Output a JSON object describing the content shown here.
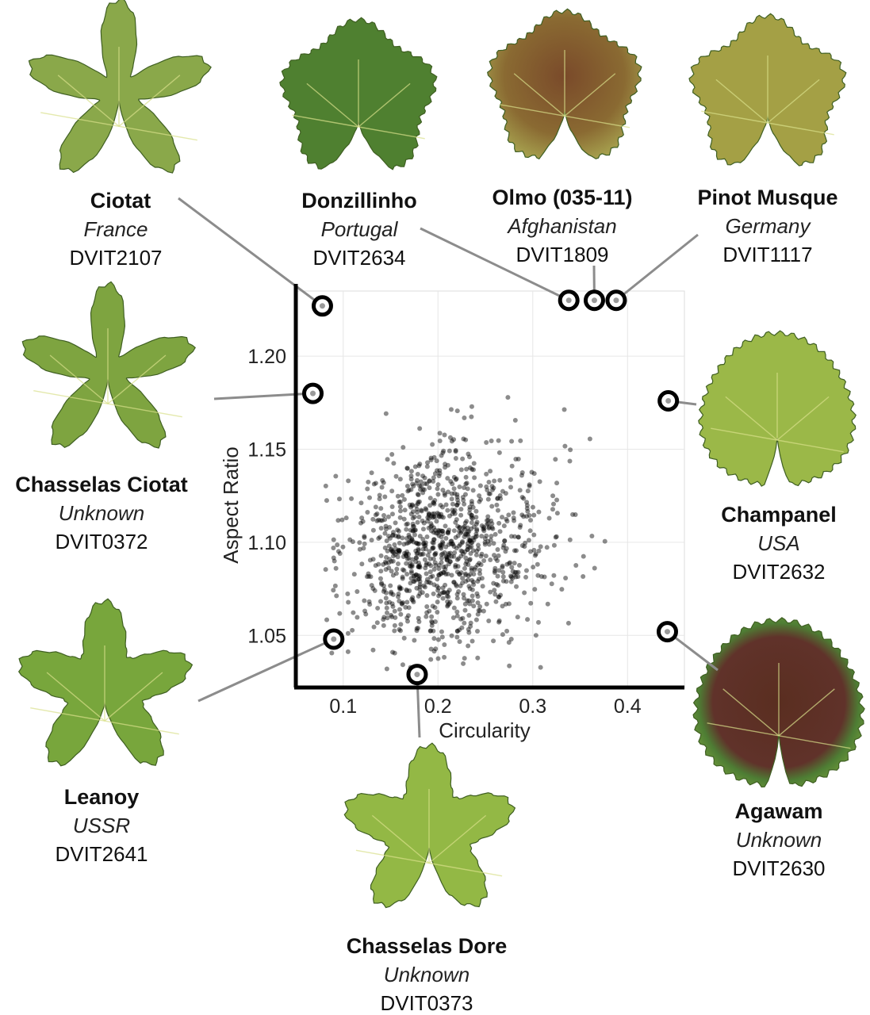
{
  "chart_data": {
    "type": "scatter",
    "xlabel": "Circularity",
    "ylabel": "Aspect Ratio",
    "xlim": [
      0.05,
      0.46
    ],
    "ylim": [
      1.022,
      1.235
    ],
    "xticks": [
      "0.1",
      "0.2",
      "0.3",
      "0.4"
    ],
    "yticks": [
      "1.05",
      "1.10",
      "1.15",
      "1.20"
    ],
    "grid": true,
    "background_points": {
      "count": 1100,
      "distribution": "bivariate cluster centred near circularity 0.2, aspect ratio 1.095",
      "color": "#000000",
      "opacity": 0.45
    },
    "highlighted": [
      {
        "name": "Ciotat",
        "origin": "France",
        "accession": "DVIT2107",
        "x": 0.078,
        "y": 1.227
      },
      {
        "name": "Donzillinho",
        "origin": "Portugal",
        "accession": "DVIT2634",
        "x": 0.338,
        "y": 1.23
      },
      {
        "name": "Olmo (035-11)",
        "origin": "Afghanistan",
        "accession": "DVIT1809",
        "x": 0.365,
        "y": 1.23
      },
      {
        "name": "Pinot Musque",
        "origin": "Germany",
        "accession": "DVIT1117",
        "x": 0.388,
        "y": 1.23
      },
      {
        "name": "Chasselas Ciotat",
        "origin": "Unknown",
        "accession": "DVIT0372",
        "x": 0.068,
        "y": 1.18
      },
      {
        "name": "Champanel",
        "origin": "USA",
        "accession": "DVIT2632",
        "x": 0.443,
        "y": 1.176
      },
      {
        "name": "Leanoy",
        "origin": "USSR",
        "accession": "DVIT2641",
        "x": 0.09,
        "y": 1.048
      },
      {
        "name": "Chasselas Dore",
        "origin": "Unknown",
        "accession": "DVIT0373",
        "x": 0.178,
        "y": 1.029
      },
      {
        "name": "Agawam",
        "origin": "Unknown",
        "accession": "DVIT2630",
        "x": 0.442,
        "y": 1.052
      }
    ]
  },
  "colors": {
    "axis": "#000000",
    "grid": "#e6e6e6",
    "leader_line": "#8c8c8c",
    "leaf_green": "#6f9a3a",
    "leaf_light": "#a9c455",
    "leaf_brown": "#6e4424"
  },
  "leaves": [
    {
      "name": "ciotat-leaf",
      "style": "dissected",
      "tint": "#8aa84a"
    },
    {
      "name": "donzillinho-leaf",
      "style": "round",
      "tint": "#4f8030"
    },
    {
      "name": "olmo-leaf",
      "style": "round",
      "tint": "#8a6a32"
    },
    {
      "name": "pinot-musque-leaf",
      "style": "round",
      "tint": "#a4a045"
    },
    {
      "name": "chasselas-ciotat-leaf",
      "style": "dissected",
      "tint": "#7ea440"
    },
    {
      "name": "champanel-leaf",
      "style": "heart",
      "tint": "#9bb848"
    },
    {
      "name": "leanoy-leaf",
      "style": "lobed",
      "tint": "#78a63c"
    },
    {
      "name": "chasselas-dore-leaf",
      "style": "lobed",
      "tint": "#93b845"
    },
    {
      "name": "agawam-leaf",
      "style": "heart",
      "tint": "#4e7d34"
    }
  ]
}
